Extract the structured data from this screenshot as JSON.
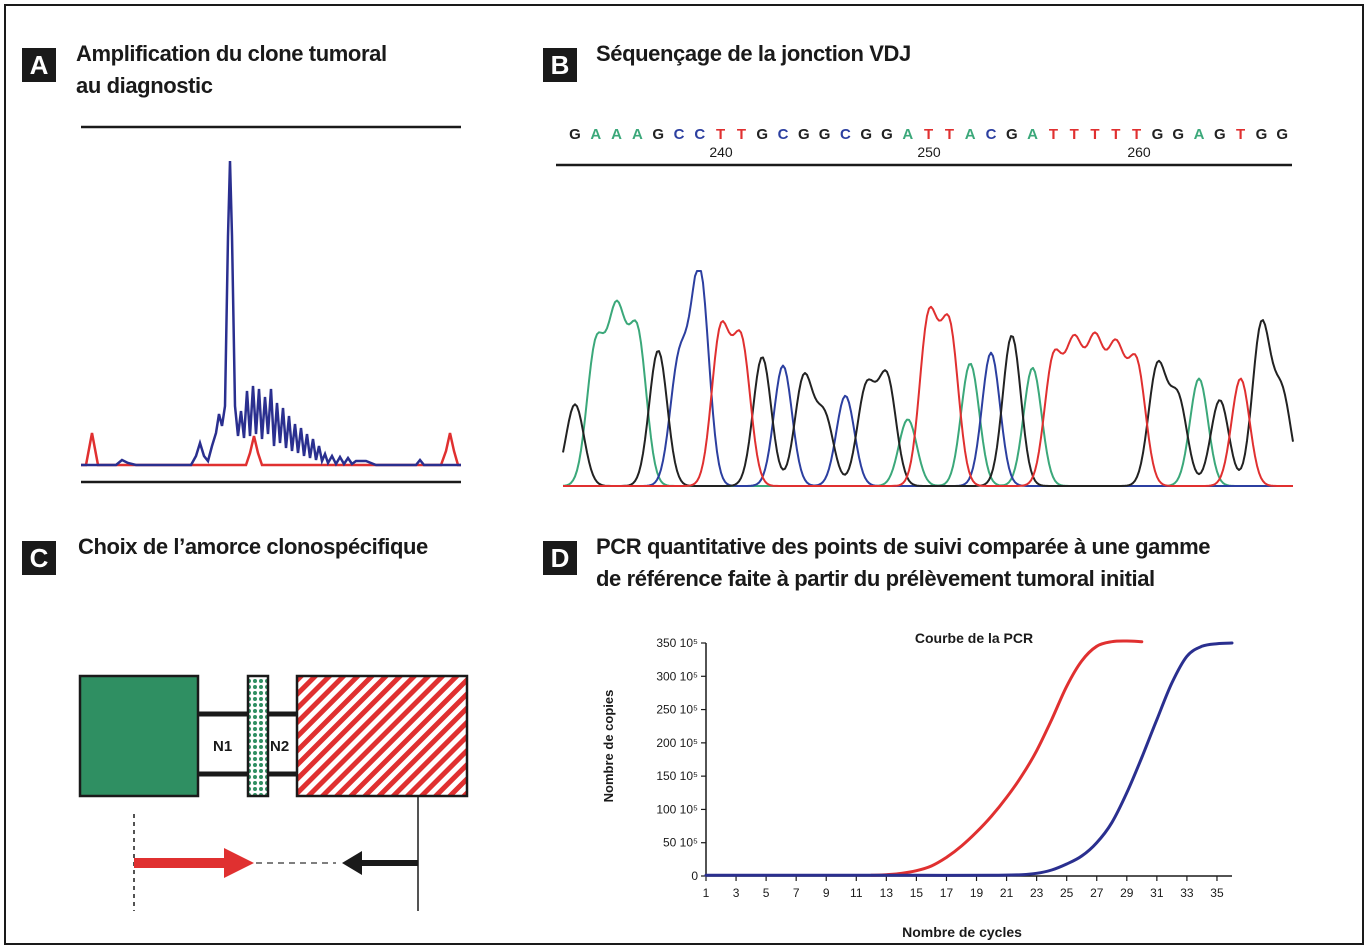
{
  "panels": {
    "a": {
      "letter": "A",
      "title_lines": [
        "Amplification du clone tumoral",
        "au diagnostic"
      ]
    },
    "b": {
      "letter": "B",
      "title_lines": [
        "Séquençage de la jonction VDJ"
      ],
      "sequence": "GAAAGCCTTGCGGCGGATTACGATTTTTGGAGTGG",
      "position_labels": [
        "240",
        "250",
        "260"
      ]
    },
    "c": {
      "letter": "C",
      "title_lines": [
        "Choix de l’amorce clonospécifique"
      ],
      "labels": {
        "n1": "N1",
        "n2": "N2"
      }
    },
    "d": {
      "letter": "D",
      "title_lines": [
        "PCR quantitative des points de suivi comparée à une gamme",
        "de référence faite à partir du prélèvement tumoral initial"
      ]
    }
  },
  "colors": {
    "a": "#3ba87a",
    "c": "#2c3fa0",
    "g": "#222222",
    "t": "#e03030",
    "blue_trace": "#2a2f8f",
    "red_trace": "#e03030",
    "green_block": "#2f8f62",
    "red_block": "#e03030",
    "primer_red": "#e03030",
    "primer_black": "#1a1a1a"
  },
  "chart_data": {
    "type": "line",
    "title": "Courbe de la PCR",
    "xlabel": "Nombre de cycles",
    "ylabel": "Nombre de copies",
    "xlim": [
      1,
      36
    ],
    "ylim": [
      0,
      350
    ],
    "x_ticks": [
      "1",
      "3",
      "5",
      "7",
      "9",
      "11",
      "13",
      "15",
      "17",
      "19",
      "21",
      "23",
      "25",
      "27",
      "29",
      "31",
      "33",
      "35"
    ],
    "y_ticks": [
      {
        "value": 350,
        "label": "350 10⁵"
      },
      {
        "value": 300,
        "label": "300 10⁵"
      },
      {
        "value": 250,
        "label": "250 10⁵"
      },
      {
        "value": 200,
        "label": "200 10⁵"
      },
      {
        "value": 150,
        "label": "150 10⁵"
      },
      {
        "value": 100,
        "label": "100 10⁵"
      },
      {
        "value": 50,
        "label": "50 10⁵"
      },
      {
        "value": 0,
        "label": "0"
      }
    ],
    "series": [
      {
        "color": "#e03030",
        "x": [
          12,
          13,
          14,
          15,
          16,
          17,
          18,
          19,
          20,
          21,
          22,
          23,
          24,
          25,
          26,
          27,
          28,
          29,
          30
        ],
        "y": [
          1,
          2,
          4,
          8,
          15,
          28,
          45,
          66,
          90,
          118,
          150,
          188,
          235,
          285,
          323,
          345,
          352,
          353,
          352
        ]
      },
      {
        "color": "#2a2f8f",
        "x": [
          1,
          5,
          10,
          15,
          20,
          22,
          23,
          24,
          25,
          26,
          27,
          28,
          29,
          30,
          31,
          32,
          33,
          34,
          35,
          36
        ],
        "y": [
          1,
          1,
          1,
          1,
          1,
          2,
          4,
          9,
          18,
          30,
          50,
          80,
          125,
          178,
          235,
          290,
          330,
          345,
          349,
          350
        ]
      }
    ]
  }
}
